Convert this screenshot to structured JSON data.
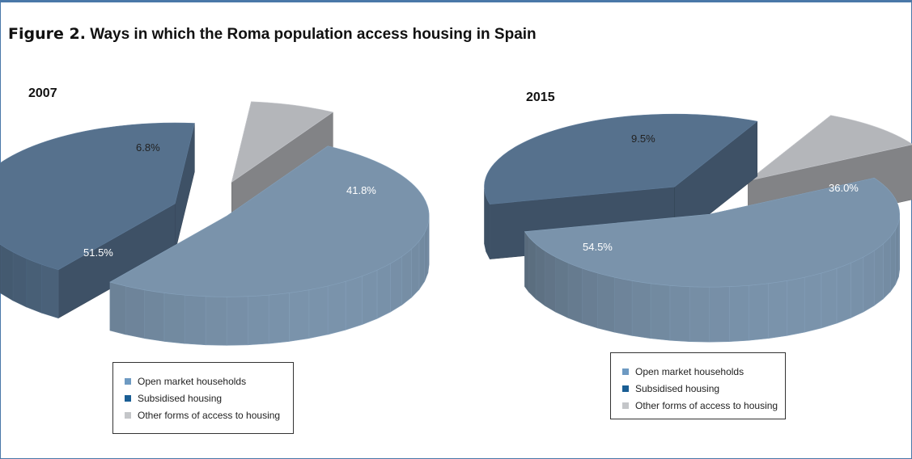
{
  "figure": {
    "label": "Figure 2.",
    "title": "Ways in which the Roma population access housing in Spain"
  },
  "colors": {
    "open_market": "#7a93ab",
    "subsidised": "#56718d",
    "other": "#b4b6ba",
    "legend_open_market": "#6e9ac2",
    "legend_subsidised": "#1a5e94",
    "legend_other": "#c4c6c9",
    "frame": "#4a78a8"
  },
  "chart_data": [
    {
      "type": "pie",
      "title": "2007",
      "labels": [
        "Open market households",
        "Subsidised housing",
        "Other forms of access to housing"
      ],
      "values": [
        51.5,
        41.8,
        6.8
      ],
      "value_labels": [
        "51.5%",
        "41.8%",
        "6.8%"
      ]
    },
    {
      "type": "pie",
      "title": "2015",
      "labels": [
        "Open market households",
        "Subsidised housing",
        "Other forms of access to housing"
      ],
      "values": [
        54.5,
        36.0,
        9.5
      ],
      "value_labels": [
        "54.5%",
        "36.0%",
        "9.5%"
      ]
    }
  ],
  "legends": [
    {
      "items": [
        {
          "label": "Open market households"
        },
        {
          "label": "Subsidised housing"
        },
        {
          "label": "Other forms of access to housing"
        }
      ]
    },
    {
      "items": [
        {
          "label": "Open market households"
        },
        {
          "label": "Subsidised housing"
        },
        {
          "label": "Other forms of access to housing"
        }
      ]
    }
  ]
}
